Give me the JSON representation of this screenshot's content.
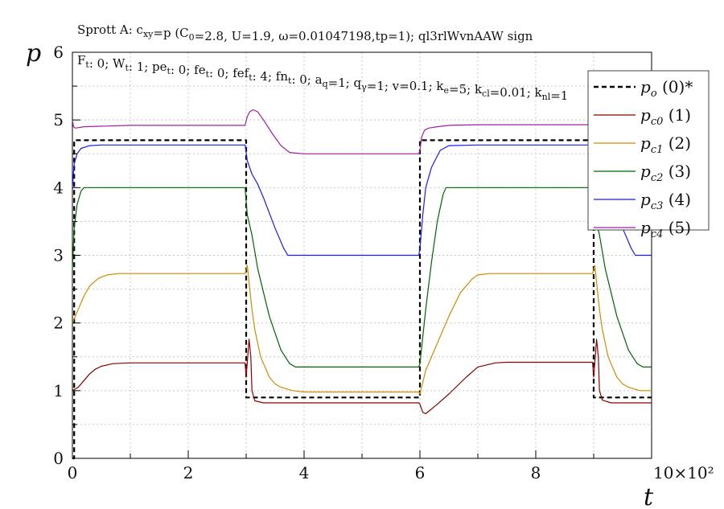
{
  "chart_data": {
    "type": "line",
    "title": "Sprott A: c_xy=p (C_0=2.8, U=1.9, ω=0.01047198,tp=1); ql3rlWvnAAW sign",
    "subtitle": "F_t: 0; W_t: 1; pe_t: 0; fe_t: 0; fef_t: 4; fn_t: 0; a_q=1; q_γ=1; v=0.1; k_e=5; k_cl=0.01; k_nl=1",
    "title_display": "Sprott A: c",
    "xlabel": "t",
    "ylabel": "p",
    "x_multiplier": "10×10²",
    "xlim": [
      0,
      10
    ],
    "ylim": [
      0,
      6
    ],
    "xticks": [
      "0",
      "2",
      "4",
      "6",
      "8"
    ],
    "yticks": [
      "0",
      "1",
      "2",
      "3",
      "4",
      "5",
      "6"
    ],
    "grid": true,
    "legend_position": "top-right",
    "series": [
      {
        "name": "p_o (0)*",
        "sym": "p",
        "sub": "o",
        "idx": " (0)*",
        "color": "#000000",
        "dashed": true,
        "x": [
          0,
          0.03,
          0.03,
          3,
          3,
          6,
          6,
          9,
          9,
          10
        ],
        "y": [
          0,
          0,
          4.7,
          4.7,
          0.9,
          0.9,
          4.7,
          4.7,
          0.9,
          0.9
        ]
      },
      {
        "name": "p_c0 (1)",
        "sym": "p",
        "sub": "c0",
        "idx": " (1)",
        "color": "#8b0000",
        "dashed": false,
        "x": [
          0,
          0.1,
          0.2,
          0.3,
          0.4,
          0.5,
          0.7,
          1.0,
          1.5,
          2.0,
          2.5,
          2.98,
          3.0,
          3.05,
          3.08,
          3.1,
          3.15,
          3.3,
          3.5,
          4.0,
          5.0,
          5.98,
          6.0,
          6.05,
          6.1,
          6.3,
          6.5,
          6.8,
          7.0,
          7.3,
          7.5,
          8.0,
          8.5,
          8.98,
          9.0,
          9.05,
          9.08,
          9.1,
          9.15,
          9.3,
          9.5,
          10
        ],
        "y": [
          1.0,
          1.05,
          1.15,
          1.25,
          1.32,
          1.36,
          1.4,
          1.41,
          1.41,
          1.41,
          1.41,
          1.41,
          1.2,
          1.76,
          1.5,
          1.0,
          0.85,
          0.82,
          0.82,
          0.82,
          0.82,
          0.82,
          0.8,
          0.68,
          0.66,
          0.8,
          0.95,
          1.2,
          1.35,
          1.41,
          1.42,
          1.42,
          1.42,
          1.42,
          1.2,
          1.76,
          1.5,
          1.0,
          0.86,
          0.82,
          0.82,
          0.82
        ]
      },
      {
        "name": "p_c1 (2)",
        "sym": "p",
        "sub": "c1",
        "idx": " (2)",
        "color": "#d08c00",
        "dashed": false,
        "x": [
          0,
          0.1,
          0.2,
          0.3,
          0.45,
          0.6,
          0.8,
          1.0,
          1.5,
          2.0,
          2.5,
          2.98,
          3.02,
          3.05,
          3.1,
          3.15,
          3.25,
          3.4,
          3.5,
          3.6,
          3.8,
          4.0,
          5.0,
          5.98,
          6.0,
          6.1,
          6.3,
          6.5,
          6.7,
          6.9,
          7.0,
          7.2,
          7.5,
          8.0,
          8.5,
          8.98,
          9.02,
          9.05,
          9.1,
          9.15,
          9.25,
          9.4,
          9.5,
          9.6,
          9.8,
          10
        ],
        "y": [
          2.0,
          2.2,
          2.4,
          2.55,
          2.66,
          2.71,
          2.73,
          2.73,
          2.73,
          2.73,
          2.73,
          2.73,
          2.85,
          2.6,
          2.2,
          1.9,
          1.5,
          1.2,
          1.1,
          1.05,
          1.0,
          0.98,
          0.98,
          0.98,
          0.95,
          1.3,
          1.7,
          2.1,
          2.45,
          2.65,
          2.71,
          2.73,
          2.73,
          2.73,
          2.73,
          2.73,
          2.85,
          2.6,
          2.2,
          1.9,
          1.5,
          1.2,
          1.1,
          1.05,
          1.0,
          1.0
        ]
      },
      {
        "name": "p_c2 (3)",
        "sym": "p",
        "sub": "c2",
        "idx": " (3)",
        "color": "#006400",
        "dashed": false,
        "x": [
          0,
          0.03,
          0.08,
          0.15,
          0.2,
          0.5,
          1.0,
          2.0,
          2.98,
          3.02,
          3.1,
          3.2,
          3.4,
          3.6,
          3.75,
          3.85,
          4.0,
          5.0,
          5.98,
          6.0,
          6.1,
          6.2,
          6.3,
          6.4,
          6.45,
          6.5,
          7.0,
          8.0,
          8.98,
          9.02,
          9.1,
          9.2,
          9.4,
          9.6,
          9.75,
          9.85,
          10
        ],
        "y": [
          2.8,
          3.4,
          3.75,
          3.95,
          4.0,
          4.0,
          4.0,
          4.0,
          4.0,
          3.6,
          3.3,
          2.8,
          2.1,
          1.6,
          1.4,
          1.35,
          1.35,
          1.35,
          1.35,
          1.4,
          2.2,
          2.9,
          3.5,
          3.9,
          4.0,
          4.0,
          4.0,
          4.0,
          4.0,
          3.6,
          3.3,
          2.8,
          2.1,
          1.6,
          1.4,
          1.35,
          1.35
        ]
      },
      {
        "name": "p_c3 (4)",
        "sym": "p",
        "sub": "c3",
        "idx": " (4)",
        "color": "#1a1aff",
        "dashed": false,
        "x": [
          0,
          0.03,
          0.08,
          0.15,
          0.3,
          0.5,
          1.0,
          2.0,
          2.98,
          3.02,
          3.1,
          3.2,
          3.3,
          3.5,
          3.65,
          3.72,
          4.0,
          5.0,
          5.98,
          6.0,
          6.05,
          6.1,
          6.2,
          6.35,
          6.5,
          7.0,
          8.0,
          8.98,
          9.02,
          9.1,
          9.2,
          9.3,
          9.5,
          9.65,
          9.72,
          10
        ],
        "y": [
          4.0,
          4.35,
          4.5,
          4.58,
          4.62,
          4.63,
          4.63,
          4.63,
          4.63,
          4.4,
          4.2,
          4.05,
          3.85,
          3.4,
          3.1,
          3.0,
          3.0,
          3.0,
          3.0,
          3.1,
          3.6,
          4.0,
          4.3,
          4.55,
          4.62,
          4.63,
          4.63,
          4.63,
          4.4,
          4.2,
          4.05,
          3.85,
          3.4,
          3.1,
          3.0,
          3.0
        ]
      },
      {
        "name": "p_c4 (5)",
        "sym": "p",
        "sub": "c4",
        "idx": " (5)",
        "color": "#a020a0",
        "dashed": false,
        "x": [
          0,
          0.02,
          0.05,
          0.2,
          1.0,
          2.0,
          2.98,
          3.02,
          3.06,
          3.12,
          3.2,
          3.3,
          3.45,
          3.6,
          3.75,
          4.0,
          5.0,
          5.98,
          6.0,
          6.03,
          6.08,
          6.15,
          6.3,
          6.5,
          7.0,
          8.0,
          8.98,
          9.02,
          9.06,
          9.12,
          9.2,
          9.3,
          9.45,
          9.6,
          9.75,
          10
        ],
        "y": [
          5.0,
          4.9,
          4.88,
          4.9,
          4.92,
          4.92,
          4.92,
          5.05,
          5.12,
          5.15,
          5.12,
          5.0,
          4.8,
          4.62,
          4.52,
          4.5,
          4.5,
          4.5,
          4.55,
          4.75,
          4.85,
          4.88,
          4.9,
          4.92,
          4.93,
          4.93,
          4.93,
          5.05,
          5.12,
          5.15,
          5.12,
          5.0,
          4.8,
          4.62,
          4.52,
          4.5
        ]
      }
    ]
  }
}
